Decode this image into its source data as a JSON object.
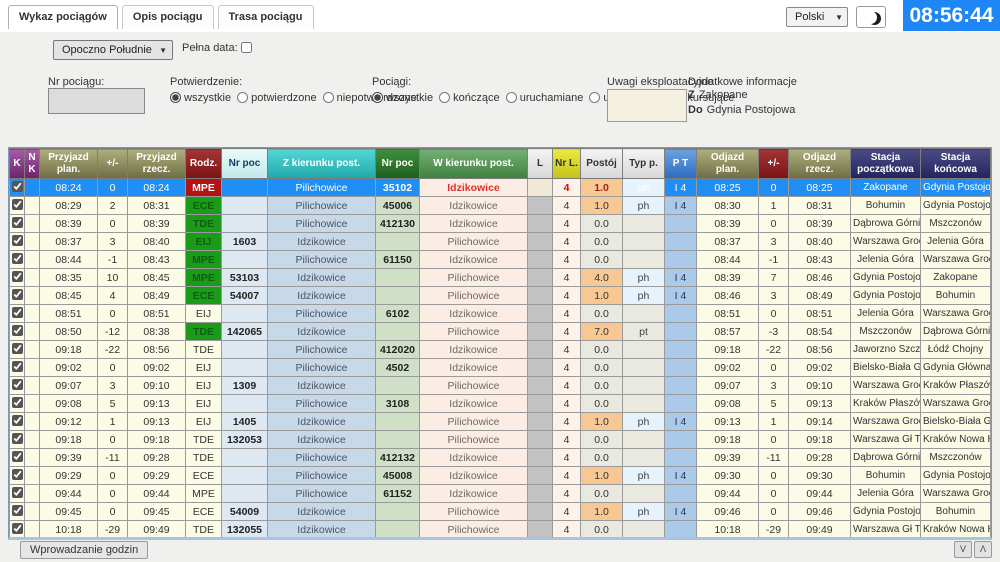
{
  "topbar": {
    "tabs": [
      {
        "label": "Wykaz pociągów",
        "active": true
      },
      {
        "label": "Opis pociągu",
        "active": false
      },
      {
        "label": "Trasa pociągu",
        "active": false
      }
    ],
    "language": "Polski",
    "clock": "08:56:44"
  },
  "filters": {
    "station_select": "Opoczno Południe",
    "full_date_label": "Pełna data:",
    "train_number_label": "Nr pociągu:",
    "train_number_value": "",
    "confirmation": {
      "label": "Potwierdzenie:",
      "options": [
        "wszystkie",
        "potwierdzone",
        "niepotwierdzone"
      ],
      "selected": "wszystkie"
    },
    "trains": {
      "label": "Pociągi:",
      "options": [
        "wszystkie",
        "kończące",
        "uruchamiane",
        "uruch. + koń.",
        "kursujące"
      ],
      "selected": "wszystkie"
    },
    "remarks_label": "Uwagi eksploatacyjne",
    "additional_info": {
      "label": "Dodatkowe informacje",
      "rows": [
        {
          "key": "Z",
          "value": "Zakopane"
        },
        {
          "key": "Do",
          "value": "Gdynia Postojowa"
        }
      ]
    }
  },
  "colors": {
    "accent_blue": "#1f87f5",
    "selected_row": "#1f8ef5",
    "kind_green": "#1a9b1a",
    "kind_red": "#b31312",
    "stop_orange": "#f8c894"
  },
  "table": {
    "headers": [
      "K",
      "N K",
      "Przyjazd plan.",
      "+/-",
      "Przyjazd rzecz.",
      "Rodz.",
      "Nr poc",
      "Z kierunku post.",
      "Nr poc",
      "W kierunku post.",
      "L",
      "Nr L.",
      "Postój",
      "Typ p.",
      "P T",
      "Odjazd plan.",
      "+/-",
      "Odjazd rzecz.",
      "Stacja początkowa",
      "Stacja końcowa"
    ],
    "rows": [
      {
        "selected": true,
        "checked": true,
        "rodz_style": "red",
        "cells": [
          "08:24",
          "0",
          "08:24",
          "MPE",
          "",
          "Pilichowice",
          "35102",
          "Idzikowice",
          "4",
          "1.0",
          "ph",
          "I 4",
          "08:25",
          "0",
          "08:25",
          "Zakopane",
          "Gdynia Postojowa"
        ]
      },
      {
        "checked": true,
        "rodz_style": "green",
        "cells": [
          "08:29",
          "2",
          "08:31",
          "ECE",
          "",
          "Pilichowice",
          "45006",
          "Idzikowice",
          "4",
          "1.0",
          "ph",
          "I 4",
          "08:30",
          "1",
          "08:31",
          "Bohumin",
          "Gdynia Postojowa"
        ]
      },
      {
        "checked": true,
        "rodz_style": "green",
        "cells": [
          "08:39",
          "0",
          "08:39",
          "TDE",
          "",
          "Pilichowice",
          "412130",
          "Idzikowice",
          "4",
          "0.0",
          "",
          "",
          "08:39",
          "0",
          "08:39",
          "Dąbrowa Górnicz..",
          "Mszczonów"
        ]
      },
      {
        "checked": true,
        "rodz_style": "green",
        "cells": [
          "08:37",
          "3",
          "08:40",
          "EIJ",
          "1603",
          "Idzikowice",
          "",
          "Pilichowice",
          "4",
          "0.0",
          "",
          "",
          "08:37",
          "3",
          "08:40",
          "Warszawa Grochów",
          "Jelenia Góra"
        ]
      },
      {
        "checked": true,
        "rodz_style": "green",
        "cells": [
          "08:44",
          "-1",
          "08:43",
          "MPE",
          "",
          "Pilichowice",
          "61150",
          "Idzikowice",
          "4",
          "0.0",
          "",
          "",
          "08:44",
          "-1",
          "08:43",
          "Jelenia Góra",
          "Warszawa Grochów"
        ]
      },
      {
        "checked": true,
        "rodz_style": "green",
        "cells": [
          "08:35",
          "10",
          "08:45",
          "MPE",
          "53103",
          "Idzikowice",
          "",
          "Pilichowice",
          "4",
          "4.0",
          "ph",
          "I 4",
          "08:39",
          "7",
          "08:46",
          "Gdynia Postojowa",
          "Zakopane"
        ]
      },
      {
        "checked": true,
        "rodz_style": "green",
        "cells": [
          "08:45",
          "4",
          "08:49",
          "ECE",
          "54007",
          "Idzikowice",
          "",
          "Pilichowice",
          "4",
          "1.0",
          "ph",
          "I 4",
          "08:46",
          "3",
          "08:49",
          "Gdynia Postojowa",
          "Bohumin"
        ]
      },
      {
        "checked": true,
        "rodz_style": "plain",
        "cells": [
          "08:51",
          "0",
          "08:51",
          "EIJ",
          "",
          "Pilichowice",
          "6102",
          "Idzikowice",
          "4",
          "0.0",
          "",
          "",
          "08:51",
          "0",
          "08:51",
          "Jelenia Góra",
          "Warszawa Grochów"
        ]
      },
      {
        "checked": true,
        "rodz_style": "green",
        "cells": [
          "08:50",
          "-12",
          "08:38",
          "TDE",
          "142065",
          "Idzikowice",
          "",
          "Pilichowice",
          "4",
          "7.0",
          "pt",
          "",
          "08:57",
          "-3",
          "08:54",
          "Mszczonów",
          "Dąbrowa Górnicz.."
        ]
      },
      {
        "checked": true,
        "rodz_style": "plain",
        "cells": [
          "09:18",
          "-22",
          "08:56",
          "TDE",
          "",
          "Pilichowice",
          "412020",
          "Idzikowice",
          "4",
          "0.0",
          "",
          "",
          "09:18",
          "-22",
          "08:56",
          "Jaworzno Szczak..",
          "Łódź Chojny"
        ]
      },
      {
        "checked": true,
        "rodz_style": "plain",
        "cells": [
          "09:02",
          "0",
          "09:02",
          "EIJ",
          "",
          "Pilichowice",
          "4502",
          "Idzikowice",
          "4",
          "0.0",
          "",
          "",
          "09:02",
          "0",
          "09:02",
          "Bielsko-Biała Głó..",
          "Gdynia Główna"
        ]
      },
      {
        "checked": true,
        "rodz_style": "plain",
        "cells": [
          "09:07",
          "3",
          "09:10",
          "EIJ",
          "1309",
          "Idzikowice",
          "",
          "Pilichowice",
          "4",
          "0.0",
          "",
          "",
          "09:07",
          "3",
          "09:10",
          "Warszawa Grochów",
          "Kraków Płaszów"
        ]
      },
      {
        "checked": true,
        "rodz_style": "plain",
        "cells": [
          "09:08",
          "5",
          "09:13",
          "EIJ",
          "",
          "Pilichowice",
          "3108",
          "Idzikowice",
          "4",
          "0.0",
          "",
          "",
          "09:08",
          "5",
          "09:13",
          "Kraków Płaszów",
          "Warszawa Grochów"
        ]
      },
      {
        "checked": true,
        "rodz_style": "plain",
        "cells": [
          "09:12",
          "1",
          "09:13",
          "EIJ",
          "1405",
          "Idzikowice",
          "",
          "Pilichowice",
          "4",
          "1.0",
          "ph",
          "I 4",
          "09:13",
          "1",
          "09:14",
          "Warszawa Grochów",
          "Bielsko-Biała Głó.."
        ]
      },
      {
        "checked": true,
        "rodz_style": "plain",
        "cells": [
          "09:18",
          "0",
          "09:18",
          "TDE",
          "132053",
          "Idzikowice",
          "",
          "Pilichowice",
          "4",
          "0.0",
          "",
          "",
          "09:18",
          "0",
          "09:18",
          "Warszawa Gł Tow..",
          "Kraków Nowa Hut.."
        ]
      },
      {
        "checked": true,
        "rodz_style": "plain",
        "cells": [
          "09:39",
          "-11",
          "09:28",
          "TDE",
          "",
          "Pilichowice",
          "412132",
          "Idzikowice",
          "4",
          "0.0",
          "",
          "",
          "09:39",
          "-11",
          "09:28",
          "Dąbrowa Górnicz..",
          "Mszczonów"
        ]
      },
      {
        "checked": true,
        "rodz_style": "plain",
        "cells": [
          "09:29",
          "0",
          "09:29",
          "ECE",
          "",
          "Pilichowice",
          "45008",
          "Idzikowice",
          "4",
          "1.0",
          "ph",
          "I 4",
          "09:30",
          "0",
          "09:30",
          "Bohumin",
          "Gdynia Postojowa"
        ]
      },
      {
        "checked": true,
        "rodz_style": "plain",
        "cells": [
          "09:44",
          "0",
          "09:44",
          "MPE",
          "",
          "Pilichowice",
          "61152",
          "Idzikowice",
          "4",
          "0.0",
          "",
          "",
          "09:44",
          "0",
          "09:44",
          "Jelenia Góra",
          "Warszawa Grochów"
        ]
      },
      {
        "checked": true,
        "rodz_style": "plain",
        "cells": [
          "09:45",
          "0",
          "09:45",
          "ECE",
          "54009",
          "Idzikowice",
          "",
          "Pilichowice",
          "4",
          "1.0",
          "ph",
          "I 4",
          "09:46",
          "0",
          "09:46",
          "Gdynia Postojowa",
          "Bohumin"
        ]
      },
      {
        "checked": true,
        "rodz_style": "plain",
        "cells": [
          "10:18",
          "-29",
          "09:49",
          "TDE",
          "132055",
          "Idzikowice",
          "",
          "Pilichowice",
          "4",
          "0.0",
          "",
          "",
          "10:18",
          "-29",
          "09:49",
          "Warszawa Gł Tow..",
          "Kraków Nowa Hut.."
        ]
      }
    ]
  },
  "footer": {
    "enter_times_label": "Wprowadzanie godzin",
    "scroll_down_label": "V",
    "scroll_up_label": "Λ"
  }
}
